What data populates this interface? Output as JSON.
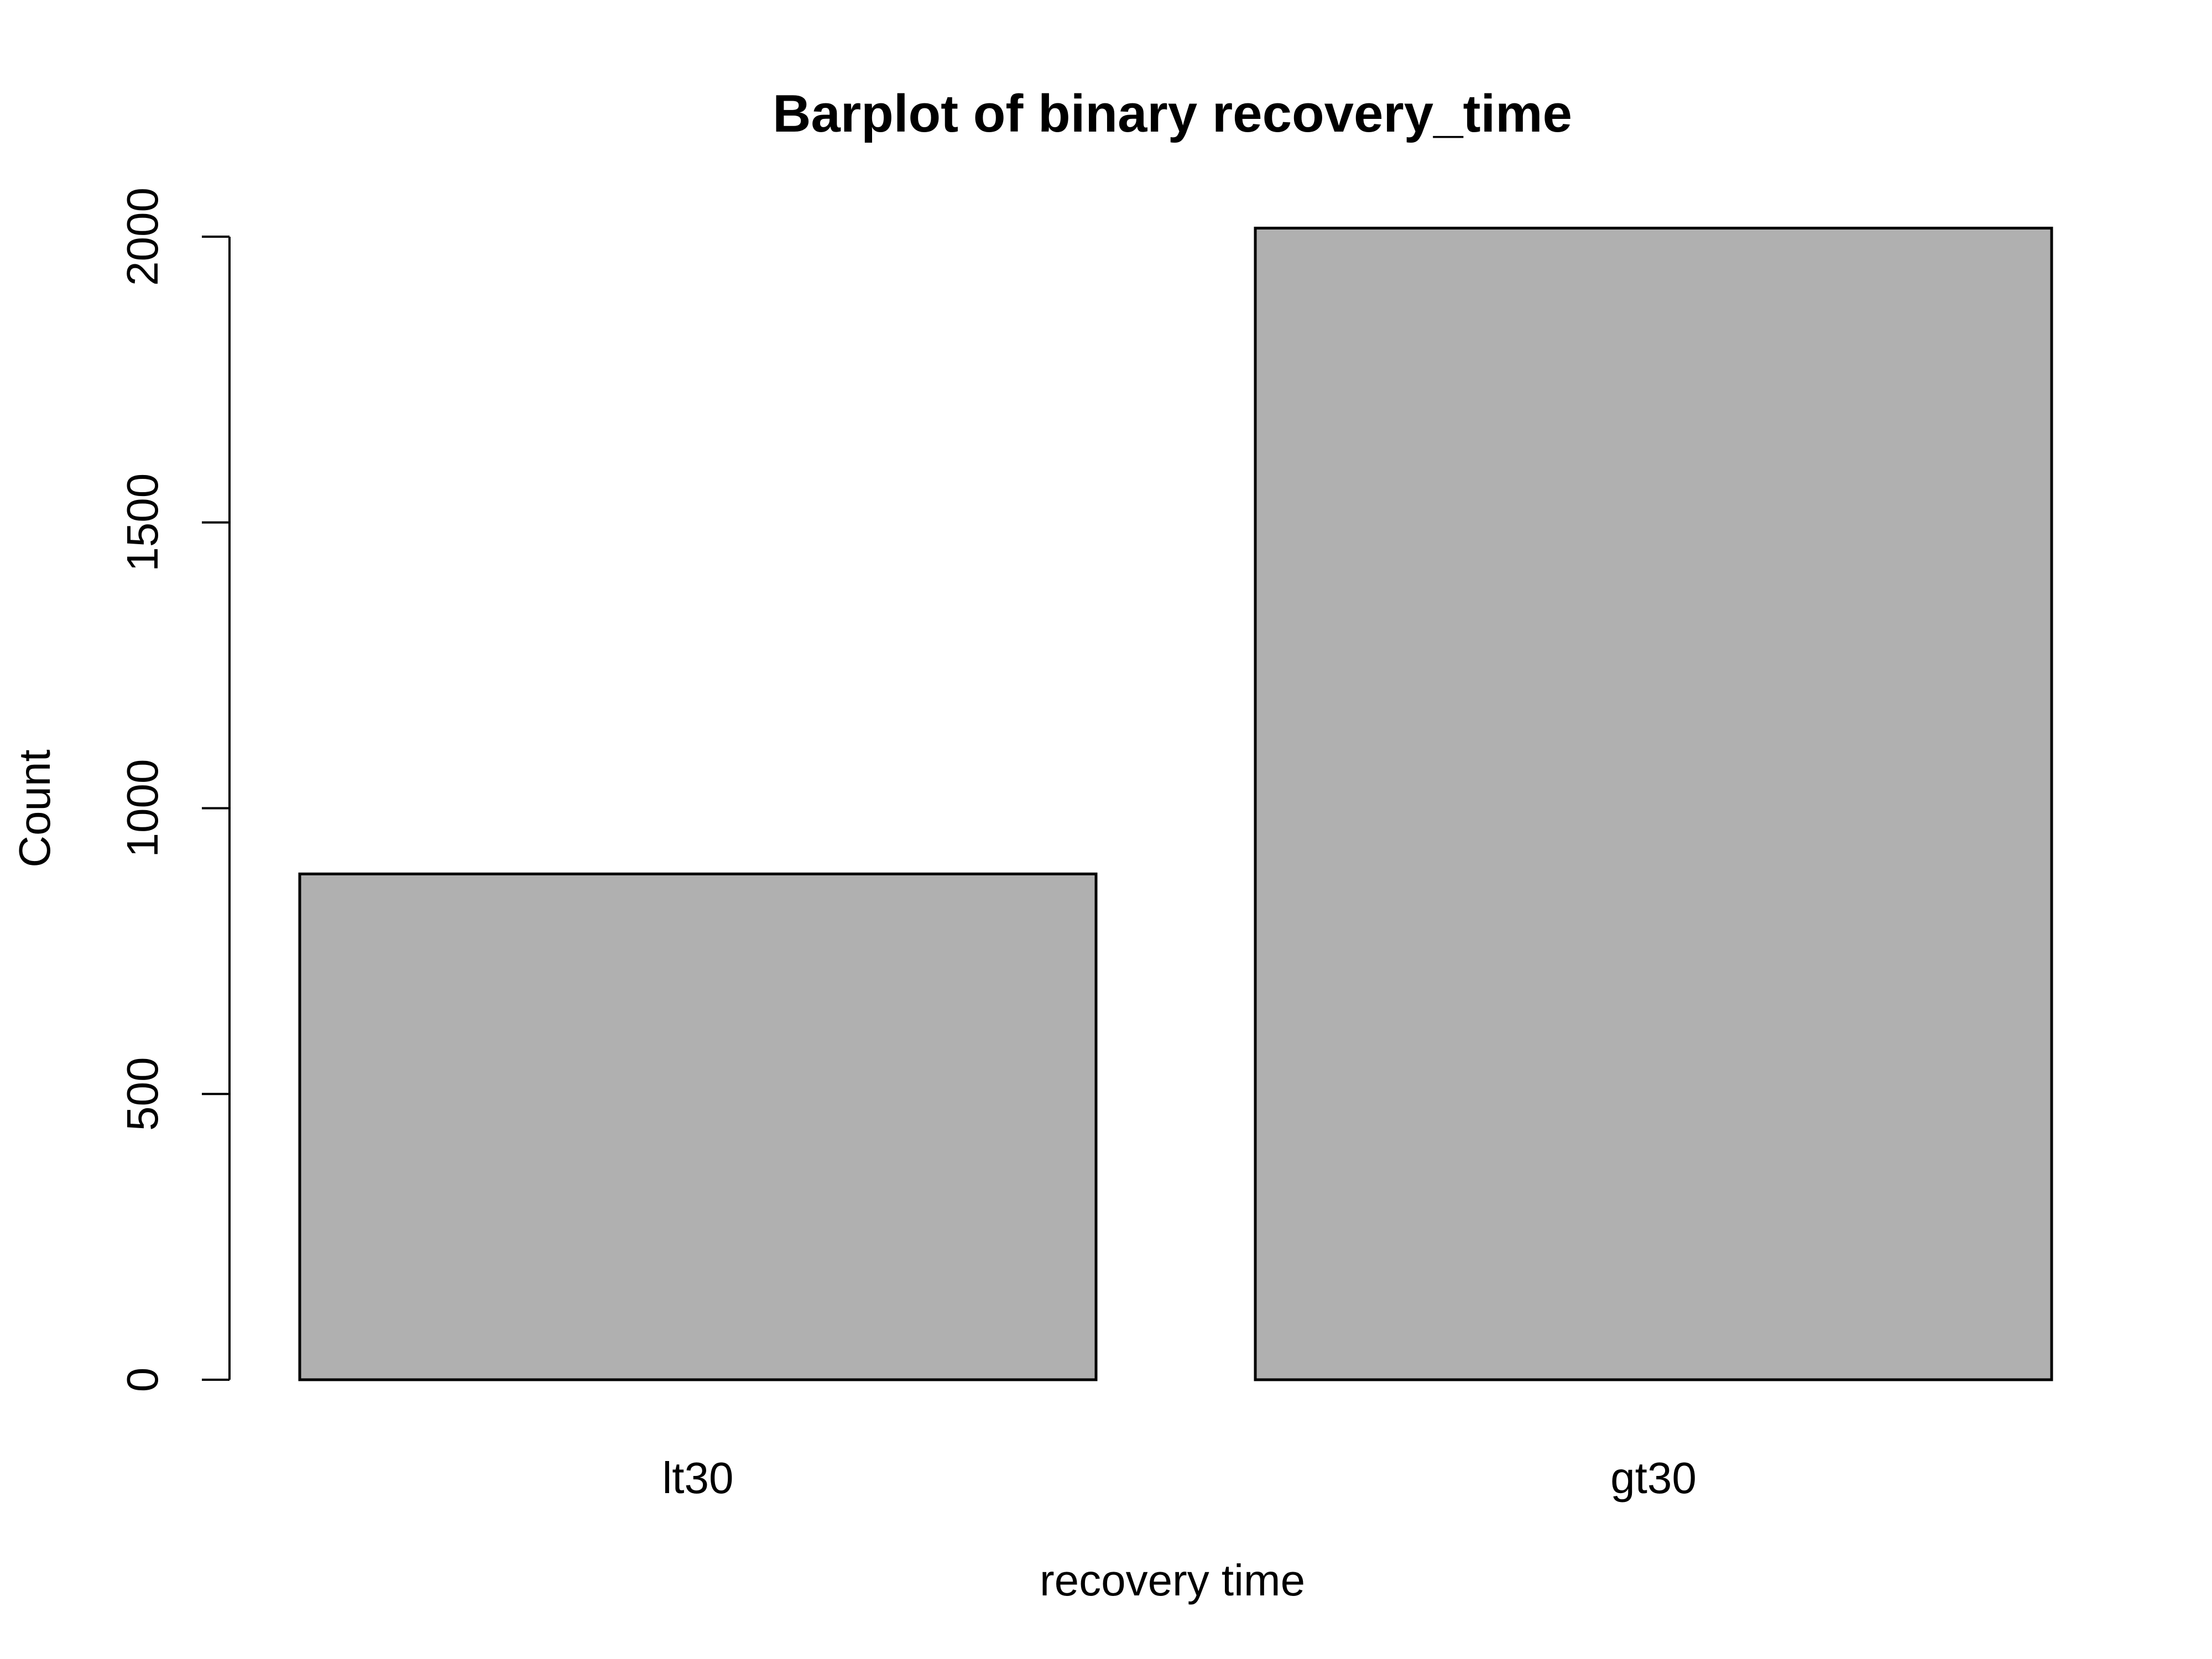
{
  "chart_data": {
    "type": "bar",
    "title": "Barplot of binary recovery_time",
    "xlabel": "recovery time",
    "ylabel": "Count",
    "categories": [
      "lt30",
      "gt30"
    ],
    "values": [
      885,
      2015
    ],
    "ylim": [
      0,
      2000
    ],
    "yticks": [
      0,
      500,
      1000,
      1500,
      2000
    ],
    "ytick_labels": [
      "0",
      "500",
      "1000",
      "1500",
      "2000"
    ],
    "bar_color": "#b0b0b0",
    "grid": false,
    "legend": "none"
  }
}
